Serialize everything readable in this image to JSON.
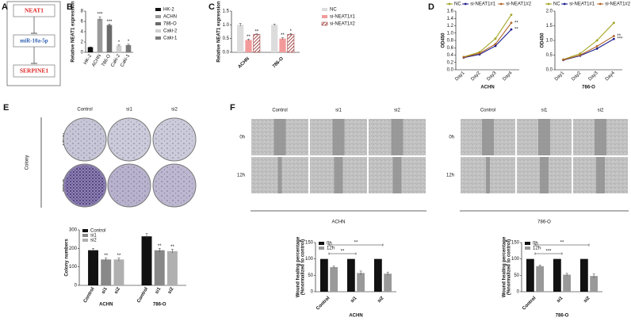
{
  "panel_labels": [
    "A",
    "B",
    "C",
    "D",
    "E",
    "F"
  ],
  "diagram": {
    "nodes": [
      "NEAT1",
      "miR-10a-5p",
      "SERPINE1"
    ]
  },
  "colony": {
    "label": "Colony",
    "columns": [
      "Control",
      "si1",
      "si2"
    ],
    "rows": [
      "ACHN",
      "786-O"
    ]
  },
  "wound": [
    {
      "label": "ACHN",
      "columns": [
        "Control",
        "si1",
        "si2"
      ],
      "rows": [
        "0h",
        "12h"
      ]
    },
    {
      "label": "786-O",
      "columns": [
        "Control",
        "si1",
        "si2"
      ],
      "rows": [
        "0h",
        "12h"
      ]
    }
  ],
  "chart_data": [
    {
      "type": "bar",
      "ylabel": "Relative NEAT1 expression",
      "categories": [
        "HK-2",
        "ACHN",
        "786-O",
        "Caki-2",
        "Caki-1"
      ],
      "values": [
        1,
        6.5,
        5.3,
        1.3,
        1.4
      ],
      "errors": [
        0.05,
        0.4,
        0.2,
        0.15,
        0.2
      ],
      "significance": [
        null,
        "***",
        "***",
        "*",
        "*"
      ],
      "colors": [
        "#111111",
        "#9a9a9a",
        "#6a6a6a",
        "#cfcfcf",
        "#7a7a7a"
      ],
      "ylim": [
        0,
        8
      ],
      "yticks": [
        0,
        2,
        4,
        6,
        8
      ],
      "legend": "right"
    },
    {
      "type": "bar",
      "ylabel": "Relative NEAT1 expression",
      "categories": [
        "ACHN",
        "786-O"
      ],
      "series": [
        {
          "name": "NC",
          "color": "#dcdcdc",
          "values": [
            1.0,
            1.0
          ],
          "errors": [
            0.05,
            0.03
          ],
          "significance": [
            null,
            null
          ]
        },
        {
          "name": "si-NEAT1#1",
          "color": "#f29a9a",
          "values": [
            0.45,
            0.5
          ],
          "errors": [
            0.03,
            0.03
          ],
          "significance": [
            "**",
            "**"
          ]
        },
        {
          "name": "si-NEAT1#2",
          "color": "#8b1a1a",
          "hatch": true,
          "values": [
            0.65,
            0.65
          ],
          "errors": [
            0.02,
            0.03
          ],
          "significance": [
            "**",
            "*"
          ]
        }
      ],
      "ylim": [
        0,
        1.5
      ],
      "yticks": [
        {
          "value": 0,
          "label": "0.0"
        },
        {
          "value": 0.5,
          "label": "0.5"
        },
        {
          "value": 1,
          "label": "1.0"
        },
        {
          "value": 1.5,
          "label": "1.5"
        }
      ],
      "legend": "right"
    },
    {
      "type": "line",
      "ylabel": "OD450",
      "xlabel": "ACHN",
      "categories": [
        "Day1",
        "Day2",
        "Day3",
        "Day4"
      ],
      "series": [
        {
          "name": "NC",
          "color": "#a3a321",
          "values": [
            0.35,
            0.48,
            0.85,
            1.5
          ]
        },
        {
          "name": "si-NEAT1#1",
          "color": "#1c1c8c",
          "values": [
            0.33,
            0.42,
            0.65,
            1.1
          ],
          "end_label": "**"
        },
        {
          "name": "si-NEAT1#2",
          "color": "#b0662a",
          "values": [
            0.34,
            0.45,
            0.7,
            1.28
          ],
          "end_label": "**"
        }
      ],
      "ylim": [
        0,
        1.6
      ],
      "yticks": [
        {
          "value": 0,
          "label": "0.0"
        },
        {
          "value": 0.2,
          "label": "0.2"
        },
        {
          "value": 0.4,
          "label": "0.4"
        },
        {
          "value": 0.6,
          "label": "0.6"
        },
        {
          "value": 0.8,
          "label": "0.8"
        },
        {
          "value": 1,
          "label": "1.0"
        },
        {
          "value": 1.2,
          "label": "1.2"
        },
        {
          "value": 1.4,
          "label": "1.4"
        },
        {
          "value": 1.6,
          "label": "1.6"
        }
      ],
      "legend": "top"
    },
    {
      "type": "line",
      "ylabel": "OD450",
      "xlabel": "786-O",
      "categories": [
        "Day1",
        "Day2",
        "Day3",
        "Day4"
      ],
      "series": [
        {
          "name": "NC",
          "color": "#a3a321",
          "values": [
            0.35,
            0.55,
            1.0,
            1.6
          ]
        },
        {
          "name": "si-NEAT1#1",
          "color": "#1c1c8c",
          "values": [
            0.33,
            0.48,
            0.72,
            1.05
          ],
          "end_label": "***"
        },
        {
          "name": "si-NEAT1#2",
          "color": "#b0662a",
          "values": [
            0.34,
            0.5,
            0.8,
            1.15
          ],
          "end_label": "**"
        }
      ],
      "ylim": [
        0,
        2
      ],
      "yticks": [
        {
          "value": 0,
          "label": "0.0"
        },
        {
          "value": 0.5,
          "label": "0.5"
        },
        {
          "value": 1,
          "label": "1.0"
        },
        {
          "value": 1.5,
          "label": "1.5"
        },
        {
          "value": 2,
          "label": "2.0"
        }
      ],
      "legend": "top"
    },
    {
      "type": "bar",
      "ylabel": "Colony numbers",
      "categories": [
        "ACHN",
        "786-O"
      ],
      "series_ticks": true,
      "series": [
        {
          "name": "Control",
          "color": "#111111",
          "values": [
            190,
            265
          ],
          "errors": [
            10,
            15
          ]
        },
        {
          "name": "si1",
          "color": "#888888",
          "values": [
            140,
            190
          ],
          "errors": [
            8,
            10
          ],
          "significance": [
            "**",
            "**"
          ]
        },
        {
          "name": "si2",
          "color": "#b0b0b0",
          "values": [
            140,
            185
          ],
          "errors": [
            8,
            10
          ],
          "significance": [
            "**",
            "**"
          ]
        }
      ],
      "ylim": [
        0,
        300
      ],
      "yticks": [
        0,
        100,
        200,
        300
      ],
      "legend": "upper left"
    },
    {
      "type": "bar",
      "ylabel": [
        "Wound healing percentage",
        "(%normalized to control)"
      ],
      "xlabel": "ACHN",
      "categories": [
        "Control",
        "si1",
        "si2"
      ],
      "series": [
        {
          "name": "0h",
          "color": "#111111",
          "values": [
            100,
            100,
            100
          ]
        },
        {
          "name": "12h",
          "color": "#999999",
          "values": [
            75,
            57,
            55
          ],
          "errors": [
            3,
            6,
            5
          ]
        }
      ],
      "brackets": [
        "**",
        "**"
      ],
      "ylim": [
        0,
        150
      ],
      "yticks": [
        0,
        50,
        100,
        150
      ],
      "legend": "upper left"
    },
    {
      "type": "bar",
      "ylabel": [
        "Wound healing percentage",
        "(%normalized to control)"
      ],
      "xlabel": "786-O",
      "categories": [
        "Control",
        "si1",
        "si2"
      ],
      "series": [
        {
          "name": "0h",
          "color": "#111111",
          "values": [
            100,
            100,
            100
          ]
        },
        {
          "name": "12h",
          "color": "#999999",
          "values": [
            78,
            52,
            48
          ],
          "errors": [
            3,
            4,
            6
          ]
        }
      ],
      "brackets": [
        "***",
        "**"
      ],
      "ylim": [
        0,
        150
      ],
      "yticks": [
        0,
        50,
        100,
        150
      ],
      "legend": "upper left"
    }
  ]
}
